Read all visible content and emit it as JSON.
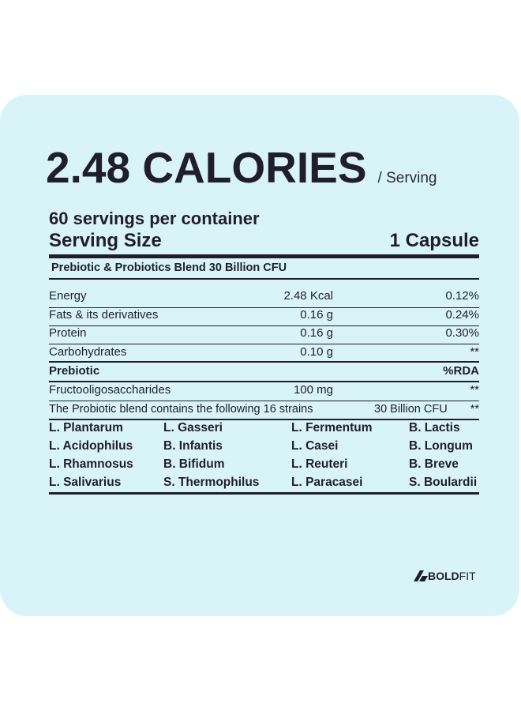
{
  "calories": {
    "value": "2.48 CALORIES",
    "unit": "/ Serving"
  },
  "servings_per_container": "60 servings per container",
  "serving_size": {
    "label": "Serving Size",
    "value": "1 Capsule"
  },
  "blend_title": "Prebiotic & Probiotics Blend 30 Billion CFU",
  "nutrients": [
    {
      "name": "Energy",
      "amount": "2.48 Kcal",
      "rda": "0.12%"
    },
    {
      "name": "Fats & its derivatives",
      "amount": "0.16 g",
      "rda": "0.24%"
    },
    {
      "name": "Protein",
      "amount": "0.16 g",
      "rda": "0.30%"
    },
    {
      "name": "Carbohydrates",
      "amount": "0.10 g",
      "rda": "**"
    }
  ],
  "prebiotic_header": {
    "name": "Prebiotic",
    "rda": "%RDA"
  },
  "prebiotic": {
    "name": "Fructooligosaccharides",
    "amount": "100 mg",
    "rda": "**"
  },
  "strain_note": {
    "text": "The Probiotic blend contains the following 16 strains",
    "cfu": "30 Billion CFU",
    "rda": "**"
  },
  "strains": [
    [
      "L. Plantarum",
      "L. Gasseri",
      "L. Fermentum",
      "B. Lactis"
    ],
    [
      "L. Acidophilus",
      "B. Infantis",
      "L. Casei",
      "B. Longum"
    ],
    [
      "L. Rhamnosus",
      "B. Bifidum",
      "L. Reuteri",
      "B. Breve"
    ],
    [
      "L. Salivarius",
      "S. Thermophilus",
      "L. Paracasei",
      "S. Boulardii"
    ]
  ],
  "brand": {
    "bold": "BOLD",
    "light": "FIT"
  },
  "colors": {
    "card": "#d9f4f9",
    "text": "#1f1e2a"
  }
}
